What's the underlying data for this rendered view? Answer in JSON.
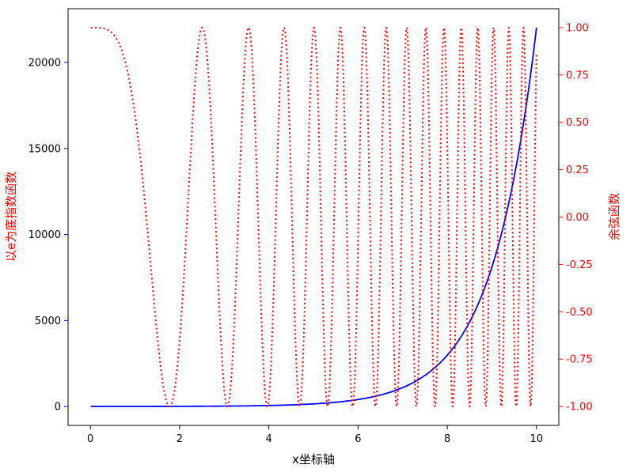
{
  "chart_data": {
    "type": "line",
    "title": "",
    "xlabel": "x坐标轴",
    "ylabel_left": "以e为底指数函数",
    "ylabel_right": "余弦函数",
    "xlim": [
      -0.5,
      10.5
    ],
    "ylim_left": [
      -1101,
      23127
    ],
    "ylim_right": [
      -1.1,
      1.1
    ],
    "x_ticks": [
      0,
      2,
      4,
      6,
      8,
      10
    ],
    "y_ticks_left": [
      0,
      5000,
      10000,
      15000,
      20000
    ],
    "y_ticks_right": [
      -1.0,
      -0.75,
      -0.5,
      -0.25,
      0.0,
      0.25,
      0.5,
      0.75,
      1.0
    ],
    "x_tick_labels": [
      "0",
      "2",
      "4",
      "6",
      "8",
      "10"
    ],
    "y_tick_labels_left": [
      "0",
      "5000",
      "10000",
      "15000",
      "20000"
    ],
    "y_tick_labels_right": [
      "-1.00",
      "-0.75",
      "-0.50",
      "-0.25",
      "0.00",
      "0.25",
      "0.50",
      "0.75",
      "1.00"
    ],
    "grid": false,
    "series": [
      {
        "axis": "left",
        "function": "exp(x)",
        "color": "#0000ff",
        "style": "solid",
        "x_range": [
          0.01,
          10
        ],
        "values": [
          [
            0,
            1
          ],
          [
            1,
            2.718
          ],
          [
            2,
            7.389
          ],
          [
            3,
            20.09
          ],
          [
            4,
            54.6
          ],
          [
            5,
            148.4
          ],
          [
            6,
            403.4
          ],
          [
            7,
            1096.6
          ],
          [
            8,
            2981
          ],
          [
            9,
            8103
          ],
          [
            10,
            22026
          ]
        ]
      },
      {
        "axis": "right",
        "function": "cos(x^2)",
        "color": "#ff0000",
        "style": "dotted",
        "x_range": [
          0.01,
          10
        ],
        "values": [
          [
            0,
            1.0
          ],
          [
            0.5,
            0.969
          ],
          [
            1.0,
            0.54
          ],
          [
            1.5,
            -0.628
          ],
          [
            1.772,
            -1.0
          ],
          [
            2.0,
            -0.654
          ],
          [
            2.5,
            0.999
          ],
          [
            3.0,
            -0.911
          ],
          [
            3.5,
            0.955
          ],
          [
            4.0,
            -0.958
          ],
          [
            5.0,
            0.991
          ],
          [
            6.0,
            -0.128
          ],
          [
            7.0,
            0.3
          ],
          [
            8.0,
            0.392
          ],
          [
            9.0,
            0.7
          ],
          [
            10.0,
            0.862
          ]
        ]
      }
    ],
    "colors": {
      "left_axis_color": "#0000ff",
      "right_axis_color": "#ff0000",
      "axis_label_color": "#ff0000"
    }
  }
}
